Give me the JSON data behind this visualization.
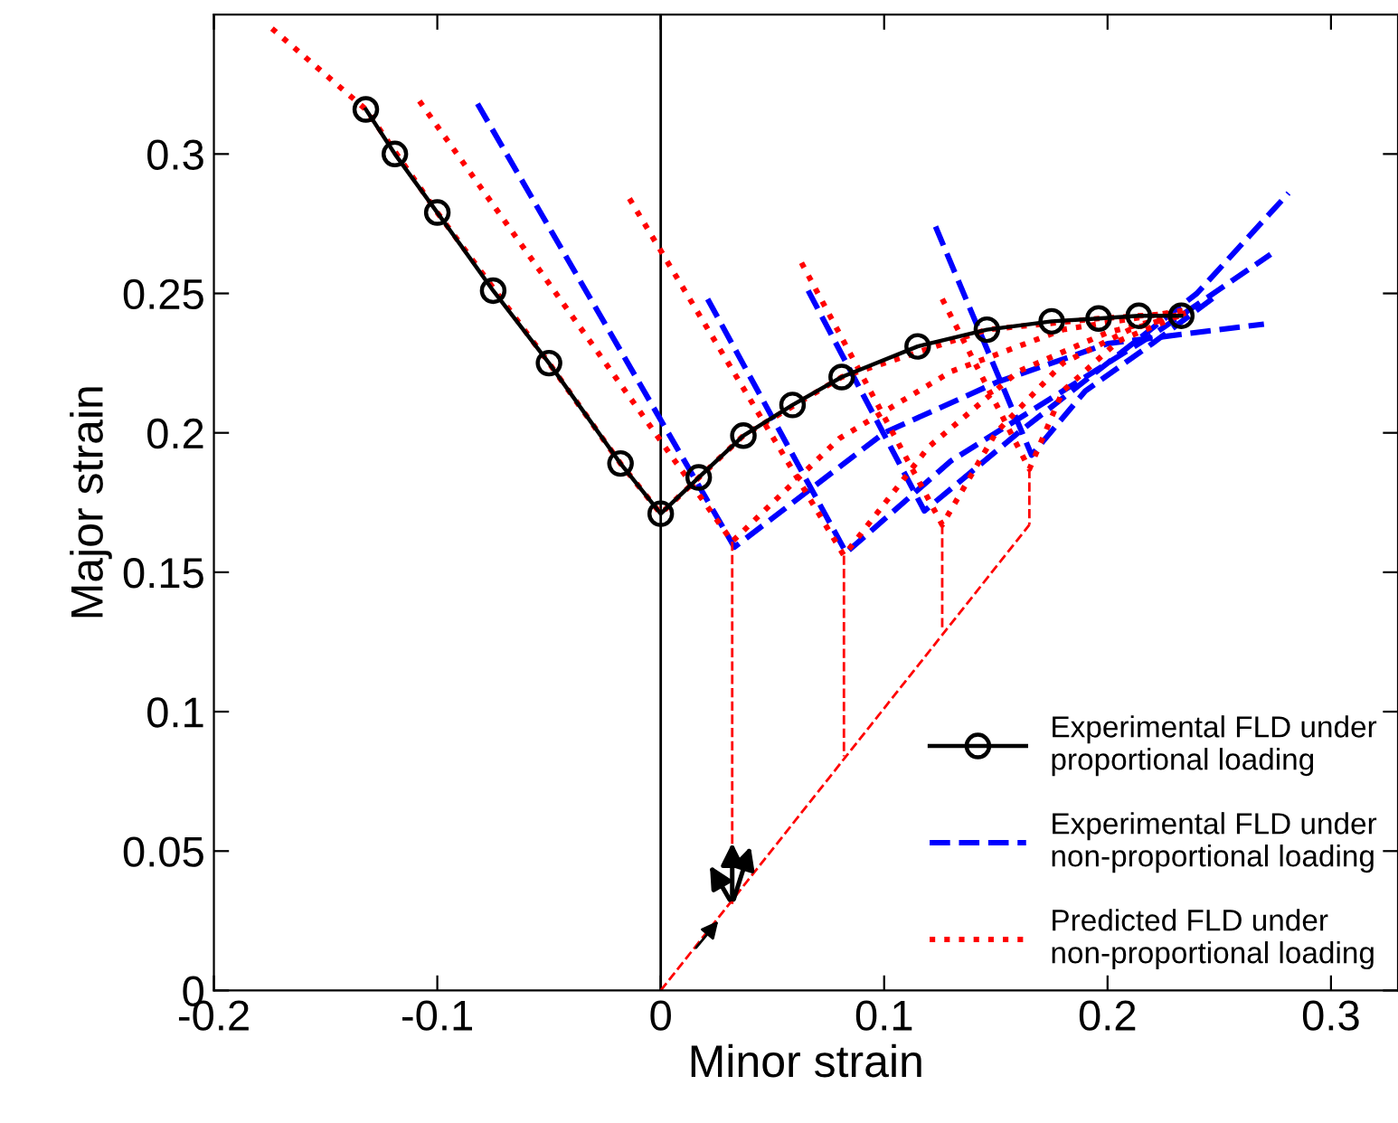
{
  "chart_data": {
    "type": "line",
    "xlabel": "Minor strain",
    "ylabel": "Major strain",
    "xlim": [
      -0.2,
      0.33
    ],
    "ylim": [
      0,
      0.35
    ],
    "xticks": [
      -0.2,
      -0.1,
      0,
      0.1,
      0.2,
      0.3
    ],
    "yticks": [
      0,
      0.05,
      0.1,
      0.15,
      0.2,
      0.25,
      0.3
    ],
    "grid": false,
    "legend": "bottom right",
    "ref_lines": [
      {
        "axis": "x",
        "value": 0,
        "color": "#000000"
      }
    ],
    "series": [
      {
        "name": "Experimental FLD under\nproportional loading",
        "color": "#000000",
        "line_style": "solid",
        "marker": "circle",
        "x": [
          -0.132,
          -0.119,
          -0.1,
          -0.075,
          -0.05,
          -0.018,
          0,
          0.017,
          0.037,
          0.059,
          0.081,
          0.115,
          0.146,
          0.175,
          0.196,
          0.214,
          0.233
        ],
        "values": [
          0.316,
          0.3,
          0.279,
          0.251,
          0.225,
          0.189,
          0.171,
          0.184,
          0.199,
          0.21,
          0.22,
          0.231,
          0.237,
          0.24,
          0.241,
          0.242,
          0.242
        ]
      },
      {
        "name": "Experimental FLD under\nnon-proportional loading",
        "color": "#0000ff",
        "line_style": "dashed",
        "marker": "none",
        "x": [
          -0.082,
          0.033,
          0.1,
          0.15,
          0.2,
          0.27
        ],
        "values": [
          0.318,
          0.159,
          0.2,
          0.218,
          0.232,
          0.239
        ]
      },
      {
        "color": "#0000ff",
        "line_style": "dashed",
        "marker": "none",
        "x": [
          0.021,
          0.083,
          0.13,
          0.18,
          0.22,
          0.273
        ],
        "values": [
          0.248,
          0.157,
          0.19,
          0.215,
          0.235,
          0.264
        ]
      },
      {
        "color": "#0000ff",
        "line_style": "dashed",
        "marker": "none",
        "x": [
          0.066,
          0.118,
          0.16,
          0.2,
          0.24,
          0.281
        ],
        "values": [
          0.251,
          0.172,
          0.2,
          0.225,
          0.25,
          0.286
        ]
      },
      {
        "color": "#0000ff",
        "line_style": "dashed",
        "marker": "none",
        "x": [
          0.123,
          0.166,
          0.19,
          0.22,
          0.25
        ],
        "values": [
          0.274,
          0.192,
          0.215,
          0.232,
          0.25
        ]
      },
      {
        "name": "Predicted FLD under\nnon-proportional loading",
        "color": "#ff0000",
        "line_style": "dotted",
        "marker": "none",
        "x": [
          -0.174,
          -0.132,
          -0.1,
          -0.05,
          -0.018,
          0,
          0.037,
          0.081,
          0.146,
          0.196,
          0.233
        ],
        "values": [
          0.345,
          0.316,
          0.279,
          0.225,
          0.189,
          0.171,
          0.199,
          0.22,
          0.237,
          0.241,
          0.243
        ]
      },
      {
        "color": "#ff0000",
        "line_style": "dotted",
        "marker": "none",
        "x": [
          -0.108,
          0.032,
          0.08,
          0.13,
          0.18,
          0.235
        ],
        "values": [
          0.319,
          0.161,
          0.198,
          0.222,
          0.237,
          0.244
        ]
      },
      {
        "color": "#ff0000",
        "line_style": "dotted",
        "marker": "none",
        "x": [
          -0.014,
          0.082,
          0.12,
          0.16,
          0.2,
          0.235
        ],
        "values": [
          0.284,
          0.156,
          0.195,
          0.222,
          0.236,
          0.243
        ]
      },
      {
        "color": "#ff0000",
        "line_style": "dotted",
        "marker": "none",
        "x": [
          0.063,
          0.126,
          0.15,
          0.18,
          0.21,
          0.235
        ],
        "values": [
          0.261,
          0.167,
          0.2,
          0.225,
          0.237,
          0.243
        ]
      },
      {
        "color": "#ff0000",
        "line_style": "dotted",
        "marker": "none",
        "x": [
          0.126,
          0.165,
          0.18,
          0.205,
          0.235
        ],
        "values": [
          0.248,
          0.187,
          0.215,
          0.233,
          0.243
        ]
      },
      {
        "color": "#ff0000",
        "line_style": "dashed",
        "marker": "none",
        "x": [
          0.032,
          0.032
        ],
        "values": [
          0.161,
          0.031
        ]
      },
      {
        "color": "#ff0000",
        "line_style": "dashed",
        "marker": "none",
        "x": [
          0.082,
          0.082
        ],
        "values": [
          0.156,
          0.084
        ]
      },
      {
        "color": "#ff0000",
        "line_style": "dashed",
        "marker": "none",
        "x": [
          0.126,
          0.126
        ],
        "values": [
          0.167,
          0.13
        ]
      },
      {
        "color": "#ff0000",
        "line_style": "dashed",
        "marker": "none",
        "x": [
          0.165,
          0.165
        ],
        "values": [
          0.187,
          0.167
        ]
      },
      {
        "color": "#ff0000",
        "line_style": "dashed",
        "marker": "none",
        "x": [
          0,
          0.165
        ],
        "values": [
          0,
          0.167
        ]
      }
    ]
  }
}
